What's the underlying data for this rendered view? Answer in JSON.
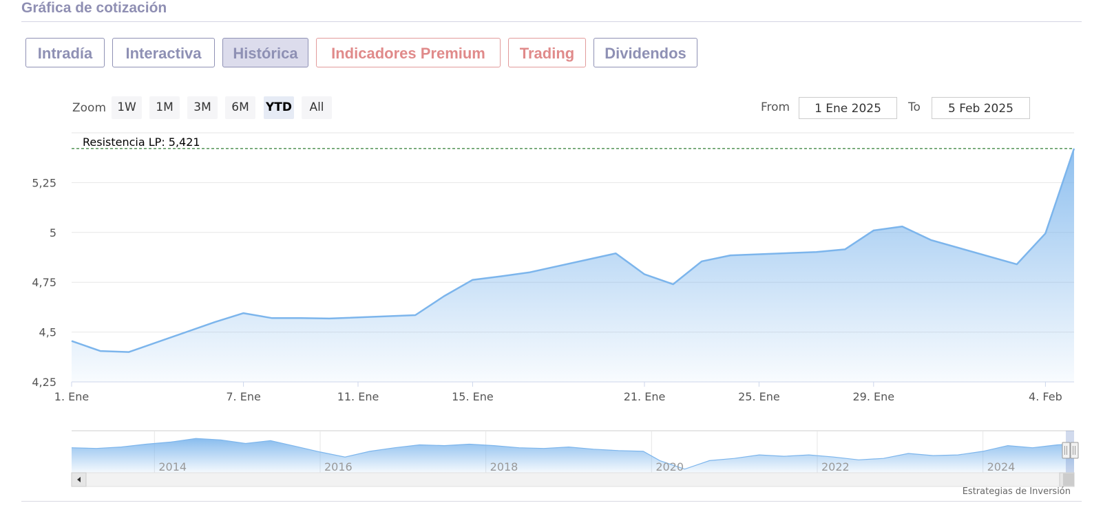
{
  "page": {
    "title": "Gráfica de cotización"
  },
  "tabs": [
    {
      "label": "Intradía",
      "active": false,
      "premium": false
    },
    {
      "label": "Interactiva",
      "active": false,
      "premium": false
    },
    {
      "label": "Histórica",
      "active": true,
      "premium": false
    },
    {
      "label": "Indicadores Premium",
      "active": false,
      "premium": true
    },
    {
      "label": "Trading",
      "active": false,
      "premium": true
    },
    {
      "label": "Dividendos",
      "active": false,
      "premium": false
    }
  ],
  "zoom": {
    "label": "Zoom",
    "options": [
      "1W",
      "1M",
      "3M",
      "6M",
      "YTD",
      "All"
    ],
    "selected": "YTD"
  },
  "range": {
    "from_label": "From",
    "from_value": "1 Ene 2025",
    "to_label": "To",
    "to_value": "5 Feb 2025"
  },
  "credit": "Estrategias de Inversión",
  "colors": {
    "line": "#7cb5ec",
    "resistance": "#2e7d32",
    "accent": "#8e90b4",
    "premium": "#e08a8a"
  },
  "chart_data": {
    "type": "area",
    "x_axis": "date",
    "x": [
      "2025-01-01",
      "2025-01-02",
      "2025-01-03",
      "2025-01-06",
      "2025-01-07",
      "2025-01-08",
      "2025-01-09",
      "2025-01-10",
      "2025-01-13",
      "2025-01-14",
      "2025-01-15",
      "2025-01-16",
      "2025-01-17",
      "2025-01-20",
      "2025-01-21",
      "2025-01-22",
      "2025-01-23",
      "2025-01-24",
      "2025-01-27",
      "2025-01-28",
      "2025-01-29",
      "2025-01-30",
      "2025-01-31",
      "2025-02-03",
      "2025-02-04",
      "2025-02-05"
    ],
    "y": [
      4.455,
      4.405,
      4.4,
      4.55,
      4.595,
      4.57,
      4.57,
      4.568,
      4.585,
      4.68,
      4.762,
      4.78,
      4.8,
      4.895,
      4.79,
      4.74,
      4.855,
      4.885,
      4.902,
      4.915,
      5.01,
      5.03,
      4.962,
      4.84,
      4.995,
      5.421
    ],
    "xticks": [
      {
        "date": "2025-01-01",
        "label": "1. Ene"
      },
      {
        "date": "2025-01-07",
        "label": "7. Ene"
      },
      {
        "date": "2025-01-11",
        "label": "11. Ene"
      },
      {
        "date": "2025-01-15",
        "label": "15. Ene"
      },
      {
        "date": "2025-01-21",
        "label": "21. Ene"
      },
      {
        "date": "2025-01-25",
        "label": "25. Ene"
      },
      {
        "date": "2025-01-29",
        "label": "29. Ene"
      },
      {
        "date": "2025-02-04",
        "label": "4. Feb"
      }
    ],
    "yticks": [
      {
        "value": 4.25,
        "label": "4,25"
      },
      {
        "value": 4.5,
        "label": "4,5"
      },
      {
        "value": 4.75,
        "label": "4,75"
      },
      {
        "value": 5,
        "label": "5"
      },
      {
        "value": 5.25,
        "label": "5,25"
      }
    ],
    "ylim": [
      4.25,
      5.5
    ],
    "resistance": {
      "label": "Resistencia LP: 5,421",
      "value": 5.421
    },
    "navigator": {
      "years": [
        "2014",
        "2016",
        "2018",
        "2020",
        "2022",
        "2024"
      ],
      "x_range": [
        2013.0,
        2025.1
      ],
      "selected_range": [
        2025.0,
        2025.1
      ],
      "series": [
        [
          2013.0,
          5.0
        ],
        [
          2013.3,
          4.9
        ],
        [
          2013.6,
          5.1
        ],
        [
          2013.9,
          5.5
        ],
        [
          2014.2,
          5.8
        ],
        [
          2014.5,
          6.3
        ],
        [
          2014.8,
          6.1
        ],
        [
          2015.1,
          5.6
        ],
        [
          2015.4,
          6.0
        ],
        [
          2015.7,
          5.2
        ],
        [
          2016.0,
          4.4
        ],
        [
          2016.3,
          3.7
        ],
        [
          2016.6,
          4.5
        ],
        [
          2016.9,
          5.0
        ],
        [
          2017.2,
          5.4
        ],
        [
          2017.5,
          5.3
        ],
        [
          2017.8,
          5.5
        ],
        [
          2018.1,
          5.3
        ],
        [
          2018.4,
          5.0
        ],
        [
          2018.7,
          4.9
        ],
        [
          2019.0,
          5.1
        ],
        [
          2019.3,
          4.8
        ],
        [
          2019.6,
          4.6
        ],
        [
          2019.9,
          4.5
        ],
        [
          2020.1,
          3.2
        ],
        [
          2020.4,
          2.0
        ],
        [
          2020.7,
          3.2
        ],
        [
          2021.0,
          3.5
        ],
        [
          2021.3,
          4.0
        ],
        [
          2021.6,
          3.8
        ],
        [
          2021.9,
          4.0
        ],
        [
          2022.2,
          3.7
        ],
        [
          2022.5,
          3.3
        ],
        [
          2022.8,
          3.5
        ],
        [
          2023.1,
          4.2
        ],
        [
          2023.4,
          3.9
        ],
        [
          2023.7,
          4.0
        ],
        [
          2024.0,
          4.5
        ],
        [
          2024.3,
          5.3
        ],
        [
          2024.6,
          5.0
        ],
        [
          2024.9,
          5.4
        ],
        [
          2025.1,
          5.5
        ]
      ]
    }
  }
}
